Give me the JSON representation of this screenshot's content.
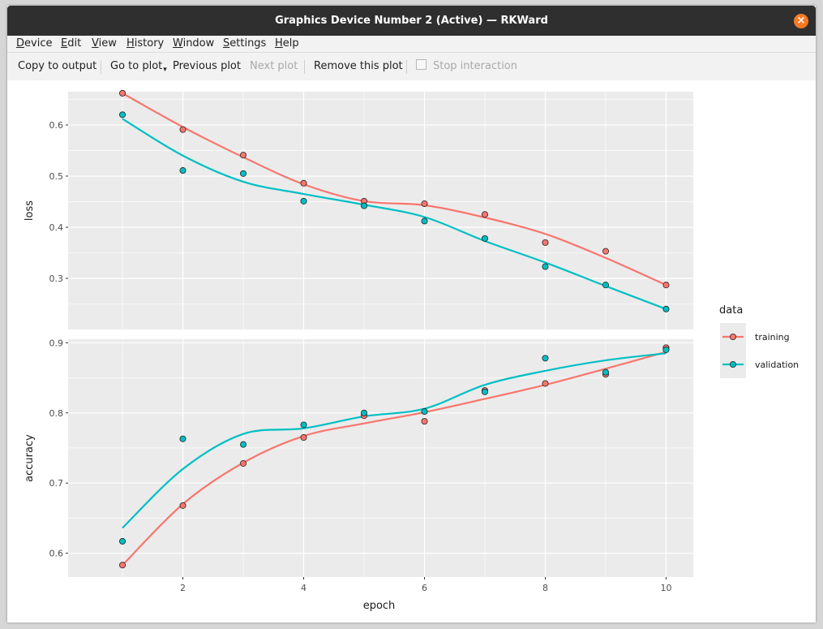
{
  "window": {
    "title": "Graphics Device Number 2 (Active) — RKWard"
  },
  "menu": [
    {
      "label": "Device",
      "underline": "D",
      "rest": "evice"
    },
    {
      "label": "Edit",
      "underline": "E",
      "rest": "dit"
    },
    {
      "label": "View",
      "underline": "V",
      "rest": "iew"
    },
    {
      "label": "History",
      "underline": "H",
      "rest": "istory"
    },
    {
      "label": "Window",
      "underline": "W",
      "rest": "indow"
    },
    {
      "label": "Settings",
      "underline": "S",
      "rest": "ettings"
    },
    {
      "label": "Help",
      "underline": "H",
      "rest": "elp"
    }
  ],
  "toolbar": {
    "copy": "Copy to output",
    "goto": "Go to plot",
    "previous": "Previous plot",
    "next": "Next plot",
    "remove": "Remove this plot",
    "stop": "Stop interaction"
  },
  "chart_data": {
    "type": "scatter",
    "x": [
      1,
      2,
      3,
      4,
      5,
      6,
      7,
      8,
      9,
      10
    ],
    "xlabel": "epoch",
    "xticks": [
      2,
      4,
      6,
      8,
      10
    ],
    "xlim": [
      0.1,
      10.45
    ],
    "legend": {
      "title": "data",
      "placement": "right"
    },
    "colors": {
      "training": "#f8766d",
      "validation": "#00bfc4",
      "panel": "#ebebeb",
      "grid": "#ffffff"
    },
    "facets": [
      {
        "ylabel": "loss",
        "ylim": [
          0.2,
          0.665
        ],
        "yticks": [
          0.3,
          0.4,
          0.5,
          0.6
        ],
        "series": [
          {
            "name": "training",
            "values": [
              0.662,
              0.591,
              0.541,
              0.486,
              0.451,
              0.446,
              0.425,
              0.37,
              0.353,
              0.287
            ],
            "smooth": [
              0.662,
              0.596,
              0.537,
              0.484,
              0.451,
              0.443,
              0.419,
              0.387,
              0.34,
              0.287
            ]
          },
          {
            "name": "validation",
            "values": [
              0.62,
              0.511,
              0.505,
              0.451,
              0.442,
              0.412,
              0.378,
              0.323,
              0.287,
              0.24
            ],
            "smooth": [
              0.612,
              0.54,
              0.489,
              0.465,
              0.444,
              0.42,
              0.373,
              0.331,
              0.285,
              0.24
            ]
          }
        ]
      },
      {
        "ylabel": "accuracy",
        "ylim": [
          0.566,
          0.905
        ],
        "yticks": [
          0.6,
          0.7,
          0.8,
          0.9
        ],
        "series": [
          {
            "name": "training",
            "values": [
              0.583,
              0.668,
              0.728,
              0.765,
              0.796,
              0.788,
              0.832,
              0.842,
              0.855,
              0.893
            ],
            "smooth": [
              0.583,
              0.67,
              0.729,
              0.767,
              0.785,
              0.801,
              0.82,
              0.84,
              0.863,
              0.887
            ]
          },
          {
            "name": "validation",
            "values": [
              0.617,
              0.763,
              0.755,
              0.783,
              0.8,
              0.802,
              0.83,
              0.878,
              0.858,
              0.89
            ],
            "smooth": [
              0.636,
              0.72,
              0.77,
              0.778,
              0.795,
              0.806,
              0.84,
              0.86,
              0.875,
              0.885
            ]
          }
        ]
      }
    ]
  }
}
